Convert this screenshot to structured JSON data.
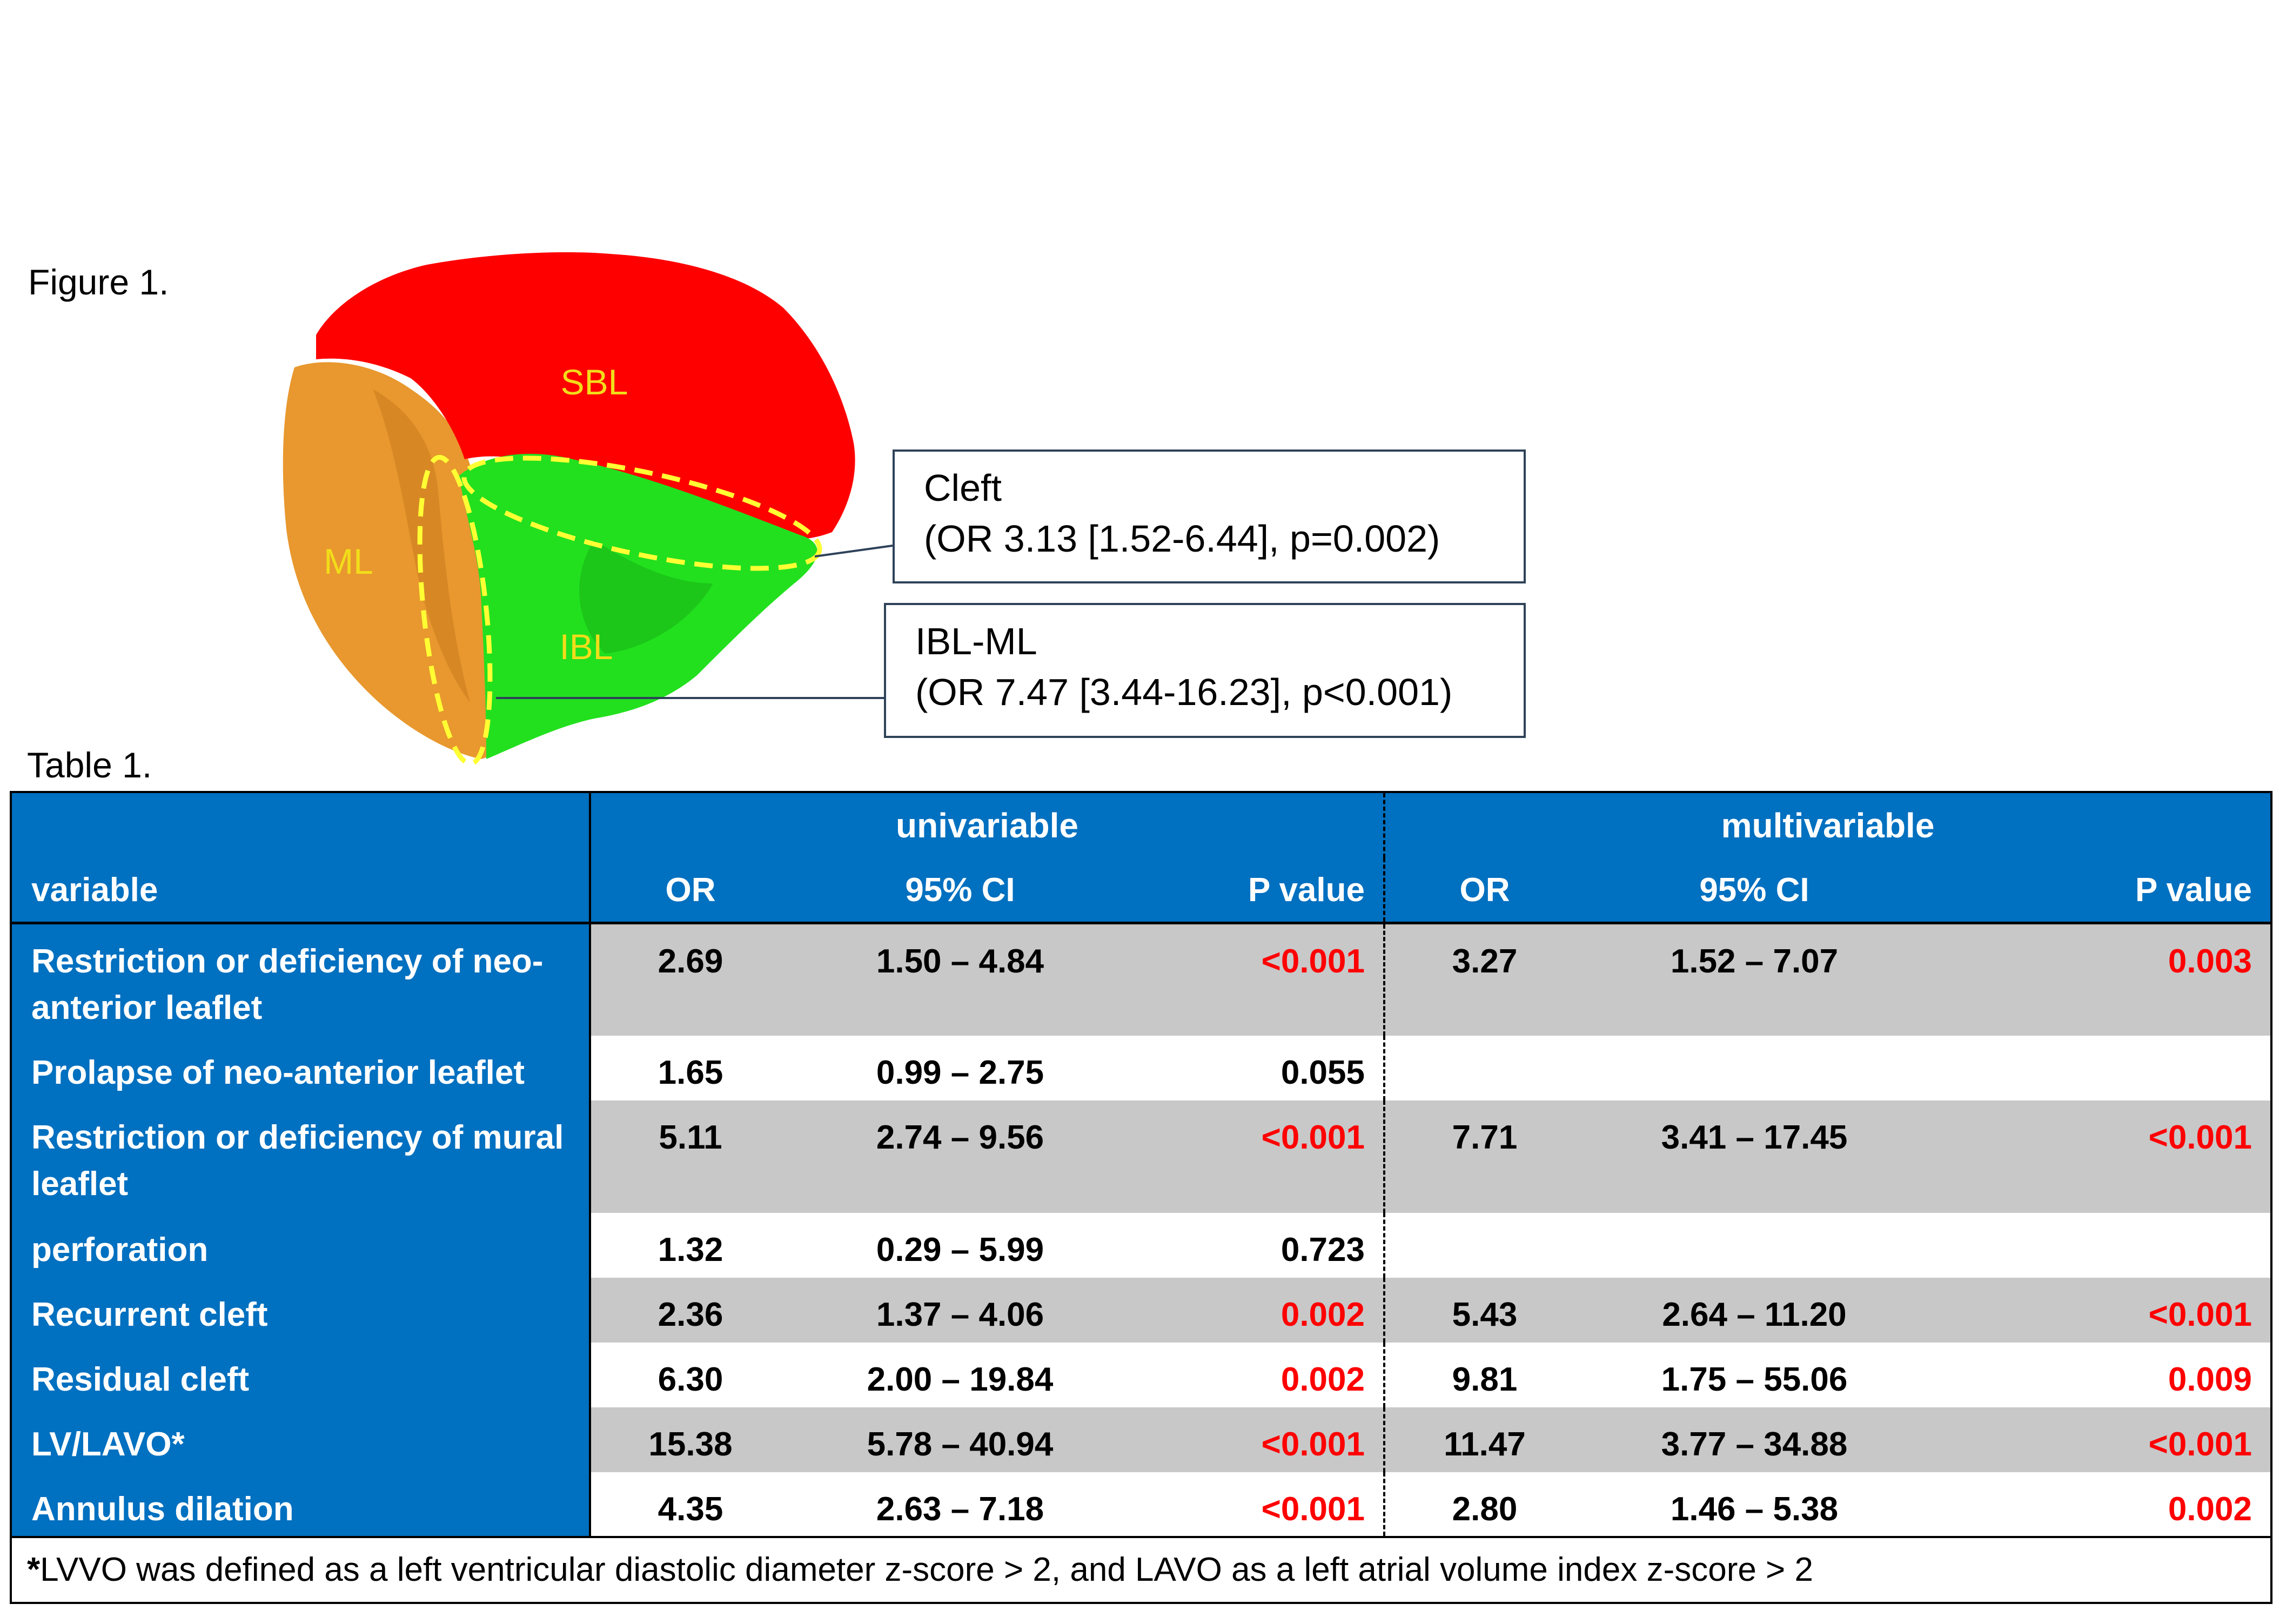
{
  "figure": {
    "caption": "Figure 1.",
    "leaflet_labels": {
      "sbl": "SBL",
      "ml": "ML",
      "ibl": "IBL"
    },
    "colors": {
      "sbl": "#ff0000",
      "ml": "#e8982e",
      "ibl": "#22e01e",
      "label": "#f2dd1a",
      "dashed": "#ffff33"
    },
    "callouts": [
      {
        "title": "Cleft",
        "detail": "(OR 3.13 [1.52-6.44], p=0.002)"
      },
      {
        "title": "IBL-ML",
        "detail": "(OR 7.47 [3.44-16.23], p<0.001)"
      }
    ]
  },
  "table": {
    "caption": "Table 1.",
    "group_headers": {
      "univariable": "univariable",
      "multivariable": "multivariable"
    },
    "column_headers": {
      "variable": "variable",
      "or": "OR",
      "ci": "95% CI",
      "p": "P value"
    },
    "rows": [
      {
        "variable": "Restriction or deficiency of neo-anterior leaflet",
        "u_or": "2.69",
        "u_ci": "1.50 – 4.84",
        "u_p": "<0.001",
        "m_or": "3.27",
        "m_ci": "1.52 – 7.07",
        "m_p": "0.003"
      },
      {
        "variable": "Prolapse of neo-anterior leaflet",
        "u_or": "1.65",
        "u_ci": "0.99 – 2.75",
        "u_p": "0.055",
        "m_or": "",
        "m_ci": "",
        "m_p": ""
      },
      {
        "variable": "Restriction or deficiency of mural leaflet",
        "u_or": "5.11",
        "u_ci": "2.74 – 9.56",
        "u_p": "<0.001",
        "m_or": "7.71",
        "m_ci": "3.41 – 17.45",
        "m_p": "<0.001"
      },
      {
        "variable": "perforation",
        "u_or": "1.32",
        "u_ci": "0.29 – 5.99",
        "u_p": "0.723",
        "m_or": "",
        "m_ci": "",
        "m_p": ""
      },
      {
        "variable": "Recurrent cleft",
        "u_or": "2.36",
        "u_ci": "1.37 – 4.06",
        "u_p": "0.002",
        "m_or": "5.43",
        "m_ci": "2.64 – 11.20",
        "m_p": "<0.001"
      },
      {
        "variable": "Residual cleft",
        "u_or": "6.30",
        "u_ci": "2.00 – 19.84",
        "u_p": "0.002",
        "m_or": "9.81",
        "m_ci": "1.75 – 55.06",
        "m_p": "0.009"
      },
      {
        "variable": "LV/LAVO*",
        "u_or": "15.38",
        "u_ci": "5.78 – 40.94",
        "u_p": "<0.001",
        "m_or": "11.47",
        "m_ci": "3.77 – 34.88",
        "m_p": "<0.001"
      },
      {
        "variable": "Annulus dilation",
        "u_or": "4.35",
        "u_ci": "2.63 – 7.18",
        "u_p": "<0.001",
        "m_or": "2.80",
        "m_ci": "1.46 – 5.38",
        "m_p": "0.002"
      }
    ],
    "footnote": {
      "marker": "*",
      "text": "LVVO was defined as a left ventricular diastolic diameter z-score > 2, and LAVO as a left atrial volume index z-score > 2"
    }
  }
}
